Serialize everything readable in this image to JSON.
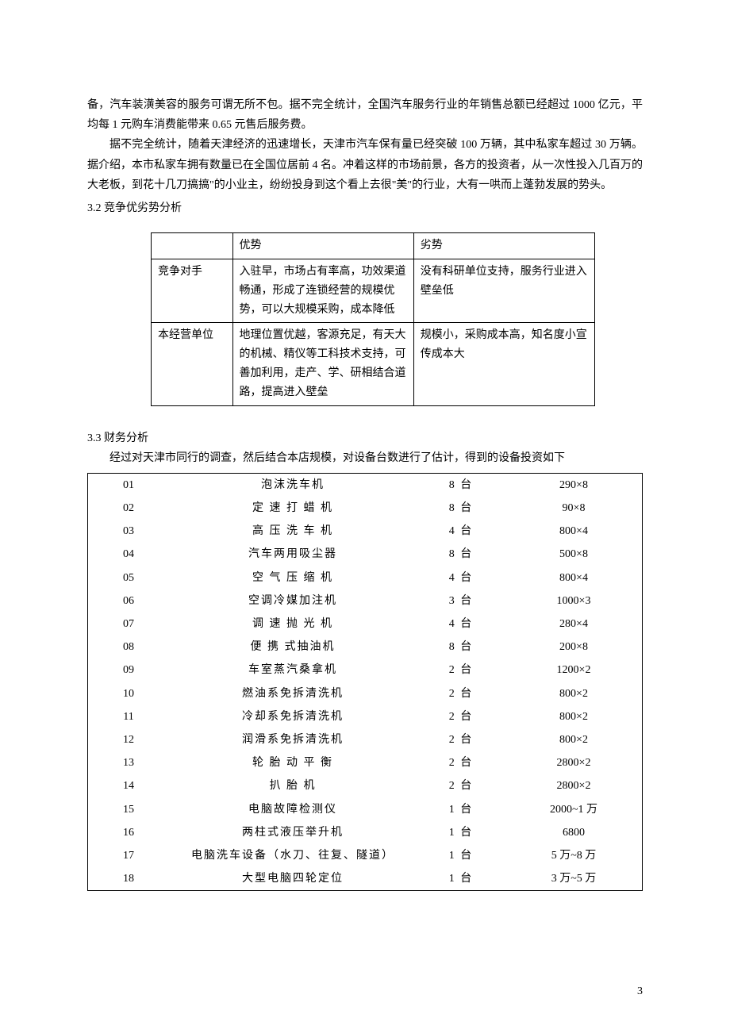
{
  "paragraphs": {
    "p1": "备，汽车装潢美容的服务可谓无所不包。据不完全统计，全国汽车服务行业的年销售总额已经超过 1000 亿元，平均每 1 元购车消费能带来 0.65 元售后服务费。",
    "p2": "据不完全统计，随着天津经济的迅速增长，天津市汽车保有量已经突破 100 万辆，其中私家车超过 30 万辆。据介绍，本市私家车拥有数量已在全国位居前 4 名。冲着这样的市场前景，各方的投资者，从一次性投入几百万的大老板，到花十几刀搞搞\"的小业主，纷纷投身到这个看上去很\"美\"的行业，大有一哄而上蓬勃发展的势头。",
    "section32": "3.2 竞争优劣势分析",
    "section33": "3.3 财务分析",
    "p3": "经过对天津市同行的调查，然后结合本店规模，对设备台数进行了估计，得到的设备投资如下"
  },
  "swot": {
    "header": {
      "blank": "",
      "adv": "优势",
      "dis": "劣势"
    },
    "row1": {
      "label": "竞争对手",
      "adv": "入驻早，市场占有率高，功效渠道畅通，形成了连锁经营的规模优势，可以大规模采购，成本降低",
      "dis": "没有科研单位支持，服务行业进入壁垒低"
    },
    "row2": {
      "label": "本经营单位",
      "adv": "地理位置优越，客源充足，有天大的机械、精仪等工科技术支持，可善加利用，走产、学、研相结合道路，提高进入壁垒",
      "dis": "规模小，采购成本高，知名度小宣传成本大"
    }
  },
  "equipment": {
    "rows": [
      {
        "no": "01",
        "name": "泡沫洗车机",
        "qty": "8 台",
        "price": "290×8"
      },
      {
        "no": "02",
        "name": "定 速 打 蜡 机",
        "qty": "8 台",
        "price": "90×8"
      },
      {
        "no": "03",
        "name": "高 压 洗 车 机",
        "qty": "4 台",
        "price": "800×4"
      },
      {
        "no": "04",
        "name": "汽车两用吸尘器",
        "qty": "8 台",
        "price": "500×8"
      },
      {
        "no": "05",
        "name": "空 气 压 缩 机",
        "qty": "4 台",
        "price": "800×4"
      },
      {
        "no": "06",
        "name": "空调冷媒加注机",
        "qty": "3 台",
        "price": "1000×3"
      },
      {
        "no": "07",
        "name": "调 速 抛 光 机",
        "qty": "4 台",
        "price": "280×4"
      },
      {
        "no": "08",
        "name": "便 携 式抽油机",
        "qty": "8 台",
        "price": "200×8"
      },
      {
        "no": "09",
        "name": "车室蒸汽桑拿机",
        "qty": "2 台",
        "price": "1200×2"
      },
      {
        "no": "10",
        "name": "燃油系免拆清洗机",
        "qty": "2 台",
        "price": "800×2"
      },
      {
        "no": "11",
        "name": "冷却系免拆清洗机",
        "qty": "2 台",
        "price": "800×2"
      },
      {
        "no": "12",
        "name": "润滑系免拆清洗机",
        "qty": "2 台",
        "price": "800×2"
      },
      {
        "no": "13",
        "name": "轮 胎 动 平 衡",
        "qty": "2 台",
        "price": "2800×2"
      },
      {
        "no": "14",
        "name": "扒 胎 机",
        "qty": "2 台",
        "price": "2800×2"
      },
      {
        "no": "15",
        "name": "电脑故障检测仪",
        "qty": "1 台",
        "price": "2000~1 万"
      },
      {
        "no": "16",
        "name": "两柱式液压举升机",
        "qty": "1 台",
        "price": "6800"
      },
      {
        "no": "17",
        "name": "电脑洗车设备（水刀、往复、隧道）",
        "qty": "1 台",
        "price": "5 万~8 万"
      },
      {
        "no": "18",
        "name": "大型电脑四轮定位",
        "qty": "1 台",
        "price": "3 万~5 万"
      }
    ]
  },
  "pageNumber": "3",
  "colors": {
    "text": "#000000",
    "background": "#ffffff",
    "border": "#000000"
  }
}
